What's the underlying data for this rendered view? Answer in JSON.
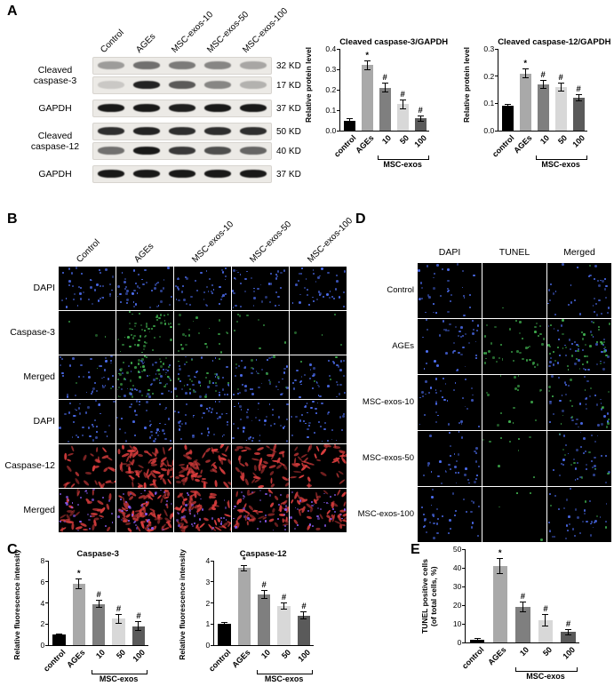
{
  "bar_colors": [
    "#000000",
    "#a9a9a9",
    "#7f7f7f",
    "#d8d8d8",
    "#5a5a5a"
  ],
  "panelA": {
    "label": "A",
    "lane_labels": [
      "Control",
      "AGEs",
      "MSC-exos-10",
      "MSC-exos-50",
      "MSC-exos-100"
    ],
    "blot_groups": [
      {
        "protein": "Cleaved caspase-3",
        "rows": [
          {
            "kd": "32 KD",
            "bands": [
              0.35,
              0.55,
              0.5,
              0.45,
              0.3
            ]
          },
          {
            "kd": "17 KD",
            "bands": [
              0.15,
              0.9,
              0.65,
              0.45,
              0.25
            ]
          }
        ]
      },
      {
        "protein": "GAPDH",
        "rows": [
          {
            "kd": "37 KD",
            "bands": [
              0.95,
              0.95,
              0.92,
              0.95,
              0.95
            ]
          }
        ]
      },
      {
        "protein": "Cleaved caspase-12",
        "rows": [
          {
            "kd": "50 KD",
            "bands": [
              0.85,
              0.9,
              0.85,
              0.85,
              0.85
            ]
          },
          {
            "kd": "40 KD",
            "bands": [
              0.55,
              0.95,
              0.8,
              0.7,
              0.6
            ]
          }
        ]
      },
      {
        "protein": "GAPDH",
        "rows": [
          {
            "kd": "37 KD",
            "bands": [
              0.95,
              0.95,
              0.95,
              0.95,
              0.95
            ]
          }
        ]
      }
    ]
  },
  "panelB": {
    "label": "B",
    "col_labels": [
      "Control",
      "AGEs",
      "MSC-exos-10",
      "MSC-exos-50",
      "MSC-exos-100"
    ],
    "rows": [
      {
        "label": "DAPI",
        "layers": [
          {
            "color": "#4d6ef2",
            "shape": "dot",
            "counts": [
              40,
              44,
              42,
              40,
              40
            ]
          }
        ]
      },
      {
        "label": "Caspase-3",
        "layers": [
          {
            "color": "#3fae4e",
            "shape": "dot",
            "counts": [
              3,
              55,
              22,
              9,
              4
            ]
          }
        ]
      },
      {
        "label": "Merged",
        "layers": [
          {
            "color": "#4d6ef2",
            "shape": "dot",
            "counts": [
              40,
              44,
              42,
              40,
              40
            ]
          },
          {
            "color": "#3fae4e",
            "shape": "dot",
            "counts": [
              3,
              55,
              22,
              9,
              4
            ]
          }
        ]
      },
      {
        "label": "DAPI",
        "layers": [
          {
            "color": "#4d6ef2",
            "shape": "dot",
            "counts": [
              38,
              42,
              40,
              40,
              38
            ]
          }
        ]
      },
      {
        "label": "Caspase-12",
        "layers": [
          {
            "color": "#d63c3c",
            "shape": "cell",
            "counts": [
              34,
              75,
              60,
              48,
              42
            ]
          }
        ]
      },
      {
        "label": "Merged",
        "layers": [
          {
            "color": "#d63c3c",
            "shape": "cell",
            "counts": [
              34,
              75,
              60,
              48,
              42
            ]
          },
          {
            "color": "#8a5cf5",
            "shape": "dot",
            "counts": [
              30,
              36,
              32,
              30,
              30
            ]
          }
        ]
      }
    ]
  },
  "panelD": {
    "label": "D",
    "col_labels": [
      "DAPI",
      "TUNEL",
      "Merged"
    ],
    "row_labels": [
      "Control",
      "AGEs",
      "MSC-exos-10",
      "MSC-exos-50",
      "MSC-exos-100"
    ],
    "dapi": {
      "color": "#4d6ef2",
      "counts": [
        36,
        40,
        38,
        36,
        35
      ]
    },
    "tunel": {
      "color": "#3fae4e",
      "counts": [
        1,
        42,
        17,
        9,
        4
      ]
    }
  },
  "panelC": {
    "label": "C"
  },
  "panelE": {
    "label": "E"
  },
  "chart_data": [
    {
      "id": "a-casp3",
      "type": "bar",
      "title": "Cleaved caspase-3/GAPDH",
      "ylabel": [
        "Relative protein level"
      ],
      "categories": [
        "control",
        "AGEs",
        "10",
        "50",
        "100"
      ],
      "values": [
        0.05,
        0.32,
        0.21,
        0.13,
        0.06
      ],
      "errors": [
        0.008,
        0.02,
        0.02,
        0.02,
        0.01
      ],
      "sig": [
        "",
        "*",
        "#",
        "#",
        "#"
      ],
      "ylim": [
        0,
        0.4
      ],
      "yticks": [
        "0.0",
        "0.1",
        "0.2",
        "0.3",
        "0.4"
      ],
      "group_label": "MSC-exos",
      "group_span": [
        2,
        4
      ]
    },
    {
      "id": "a-casp12",
      "type": "bar",
      "title": "Cleaved caspase-12/GAPDH",
      "ylabel": [
        "Relative protein level"
      ],
      "categories": [
        "control",
        "AGEs",
        "10",
        "50",
        "100"
      ],
      "values": [
        0.09,
        0.21,
        0.17,
        0.16,
        0.12
      ],
      "errors": [
        0.005,
        0.015,
        0.012,
        0.012,
        0.01
      ],
      "sig": [
        "",
        "*",
        "#",
        "#",
        "#"
      ],
      "ylim": [
        0,
        0.3
      ],
      "yticks": [
        "0.0",
        "0.1",
        "0.2",
        "0.3"
      ],
      "group_label": "MSC-exos",
      "group_span": [
        2,
        4
      ]
    },
    {
      "id": "c-casp3",
      "type": "bar",
      "title": "Caspase-3",
      "ylabel": [
        "Relative fluorescence intensity"
      ],
      "categories": [
        "control",
        "AGEs",
        "10",
        "50",
        "100"
      ],
      "values": [
        1.0,
        5.8,
        3.9,
        2.5,
        1.8
      ],
      "errors": [
        0.05,
        0.45,
        0.3,
        0.4,
        0.4
      ],
      "sig": [
        "",
        "*",
        "#",
        "#",
        "#"
      ],
      "ylim": [
        0,
        8
      ],
      "yticks": [
        "0",
        "2",
        "4",
        "6",
        "8"
      ],
      "group_label": "MSC-exos",
      "group_span": [
        2,
        4
      ]
    },
    {
      "id": "c-casp12",
      "type": "bar",
      "title": "Caspase-12",
      "ylabel": [
        "Relative fluorescence intensity"
      ],
      "categories": [
        "control",
        "AGEs",
        "10",
        "50",
        "100"
      ],
      "values": [
        1.0,
        3.65,
        2.4,
        1.85,
        1.4
      ],
      "errors": [
        0.05,
        0.1,
        0.18,
        0.12,
        0.15
      ],
      "sig": [
        "",
        "*",
        "#",
        "#",
        "#"
      ],
      "ylim": [
        0,
        4
      ],
      "yticks": [
        "0",
        "1",
        "2",
        "3",
        "4"
      ],
      "group_label": "MSC-exos",
      "group_span": [
        2,
        4
      ]
    },
    {
      "id": "e-tunel",
      "type": "bar",
      "title": "",
      "ylabel": [
        "TUNEL positive cells",
        "(of total cells, %)"
      ],
      "categories": [
        "control",
        "AGEs",
        "10",
        "50",
        "100"
      ],
      "values": [
        1.5,
        41,
        19,
        12,
        5.5
      ],
      "errors": [
        0.5,
        4,
        2.5,
        3,
        1.2
      ],
      "sig": [
        "",
        "*",
        "#",
        "#",
        "#"
      ],
      "ylim": [
        0,
        50
      ],
      "yticks": [
        "0",
        "10",
        "20",
        "30",
        "40",
        "50"
      ],
      "group_label": "MSC-exos",
      "group_span": [
        2,
        4
      ]
    }
  ]
}
